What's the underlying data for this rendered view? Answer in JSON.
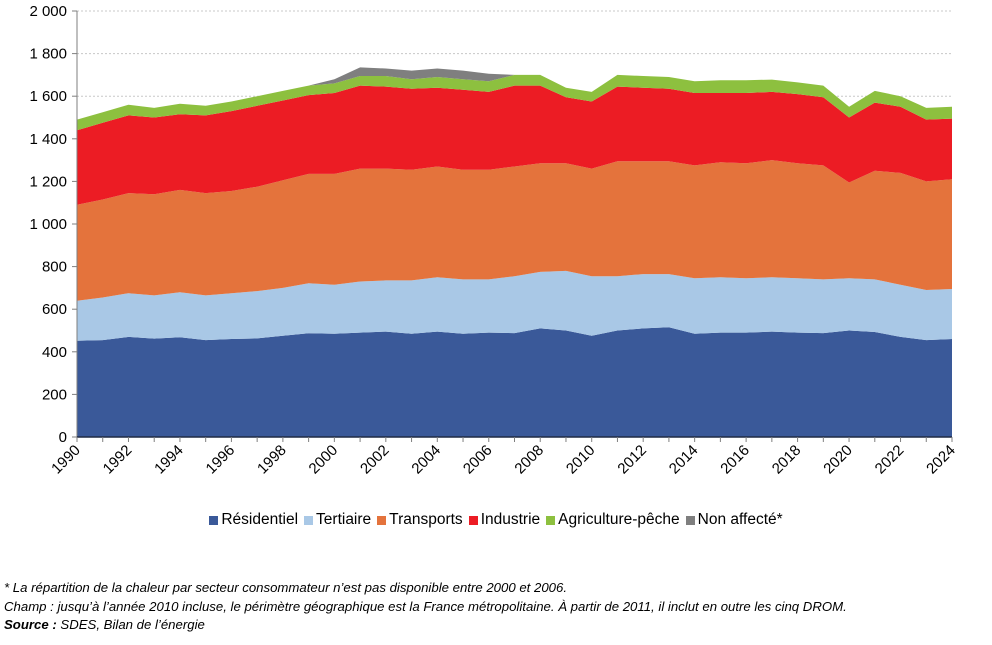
{
  "chart_data": {
    "type": "area",
    "stacked": true,
    "title": "",
    "xlabel": "",
    "ylabel": "",
    "ylim": [
      0,
      2000
    ],
    "yticks": [
      0,
      200,
      400,
      600,
      800,
      1000,
      1200,
      1400,
      1600,
      1800,
      2000
    ],
    "ytick_labels": [
      "0",
      "200",
      "400",
      "600",
      "800",
      "1 000",
      "1 200",
      "1 400",
      "1 600",
      "1 800",
      "2 000"
    ],
    "grid": "horizontal-dashed",
    "x": [
      1990,
      1991,
      1992,
      1993,
      1994,
      1995,
      1996,
      1997,
      1998,
      1999,
      2000,
      2001,
      2002,
      2003,
      2004,
      2005,
      2006,
      2007,
      2008,
      2009,
      2010,
      2011,
      2012,
      2013,
      2014,
      2015,
      2016,
      2017,
      2018,
      2019,
      2020,
      2021,
      2022,
      2023,
      2024
    ],
    "xtick_labels": [
      "1990",
      "1992",
      "1994",
      "1996",
      "1998",
      "2000",
      "2002",
      "2004",
      "2006",
      "2008",
      "2010",
      "2012",
      "2014",
      "2016",
      "2018",
      "2020",
      "2022",
      "2024"
    ],
    "legend_position": "bottom",
    "series": [
      {
        "name": "Résidentiel",
        "color": "#3A5999",
        "values": [
          452,
          455,
          470,
          462,
          468,
          455,
          460,
          463,
          475,
          487,
          485,
          490,
          495,
          485,
          495,
          485,
          490,
          488,
          510,
          500,
          475,
          500,
          510,
          515,
          485,
          490,
          490,
          495,
          490,
          488,
          500,
          493,
          470,
          455,
          460
        ]
      },
      {
        "name": "Tertiaire",
        "color": "#A9C8E6",
        "values": [
          188,
          200,
          205,
          203,
          212,
          210,
          215,
          222,
          225,
          235,
          230,
          240,
          240,
          250,
          255,
          255,
          250,
          267,
          265,
          280,
          280,
          255,
          255,
          250,
          260,
          260,
          255,
          255,
          255,
          252,
          245,
          247,
          245,
          235,
          235
        ]
      },
      {
        "name": "Transports",
        "color": "#E4733C",
        "values": [
          450,
          460,
          470,
          475,
          480,
          480,
          480,
          490,
          505,
          513,
          520,
          530,
          525,
          520,
          520,
          515,
          515,
          515,
          510,
          505,
          505,
          540,
          530,
          530,
          530,
          540,
          540,
          550,
          540,
          535,
          450,
          510,
          525,
          510,
          515
        ]
      },
      {
        "name": "Industrie",
        "color": "#EC1C24",
        "values": [
          350,
          360,
          365,
          360,
          355,
          365,
          375,
          380,
          375,
          370,
          380,
          390,
          385,
          380,
          370,
          375,
          365,
          380,
          365,
          310,
          315,
          350,
          345,
          340,
          340,
          325,
          330,
          320,
          325,
          320,
          305,
          320,
          310,
          290,
          285
        ]
      },
      {
        "name": "Agriculture-pêche",
        "color": "#8DC03F",
        "values": [
          50,
          50,
          50,
          45,
          50,
          45,
          45,
          45,
          45,
          45,
          45,
          45,
          50,
          45,
          50,
          50,
          50,
          50,
          50,
          45,
          45,
          55,
          55,
          55,
          55,
          60,
          60,
          58,
          55,
          55,
          50,
          55,
          50,
          55,
          55
        ]
      },
      {
        "name": "Non affecté*",
        "color": "#7F7F7F",
        "values": [
          0,
          0,
          0,
          0,
          0,
          0,
          0,
          0,
          0,
          0,
          20,
          40,
          35,
          40,
          40,
          40,
          35,
          0,
          0,
          0,
          0,
          0,
          0,
          0,
          0,
          0,
          0,
          0,
          0,
          0,
          0,
          0,
          0,
          0,
          0
        ]
      }
    ]
  },
  "notes": {
    "footnote": "* La répartition de la chaleur par secteur consommateur n’est pas disponible entre 2000 et 2006.",
    "champ": "Champ : jusqu’à l’année 2010 incluse, le périmètre géographique est la France métropolitaine. À partir de 2011, il inclut en outre les cinq DROM.",
    "source_label": "Source :",
    "source_text": " SDES, Bilan de l’énergie"
  }
}
